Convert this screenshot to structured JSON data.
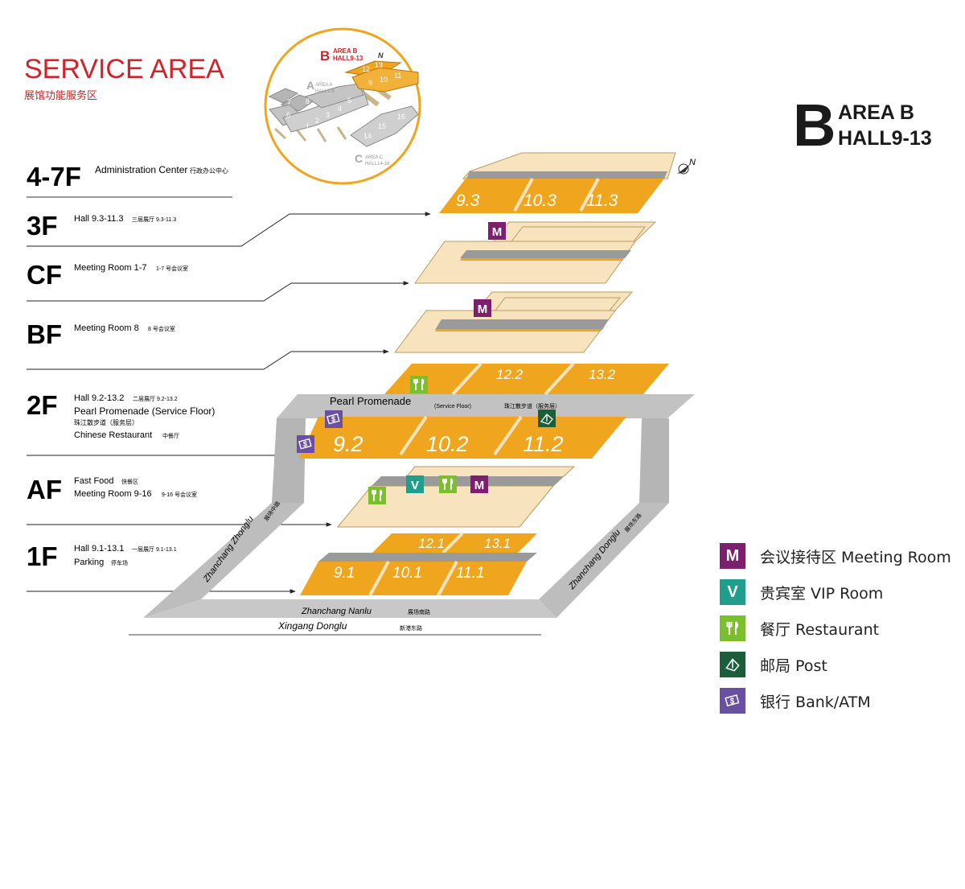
{
  "header": {
    "title": "SERVICE AREA",
    "subtitle": "展馆功能服务区",
    "area_letter": "B",
    "area_name": "AREA B",
    "area_halls": "HALL9-13"
  },
  "minimap": {
    "area_b_letter": "B",
    "area_b_line1": "AREA B",
    "area_b_line2": "HALL9-13",
    "area_a_letter": "A",
    "area_a_line1": "AREA A",
    "area_a_line2": "HALL1-8",
    "area_c_letter": "C",
    "area_c_line1": "AREA C",
    "area_c_line2": "HALL14-16",
    "north": "N",
    "a_halls": [
      "1",
      "2",
      "3",
      "4",
      "5",
      "6",
      "7",
      "8"
    ],
    "b_halls": [
      "9",
      "10",
      "11",
      "12",
      "13"
    ],
    "c_halls": [
      "14",
      "15",
      "16"
    ]
  },
  "floors": [
    {
      "label": "4-7F",
      "lines": [
        {
          "en": "Administration Center",
          "cn": "行政办公中心"
        }
      ]
    },
    {
      "label": "3F",
      "lines": [
        {
          "en": "Hall 9.3-11.3",
          "cn": "三层展厅 9.3-11.3"
        }
      ]
    },
    {
      "label": "CF",
      "lines": [
        {
          "en": "Meeting Room 1-7",
          "cn": "1-7 号会议室"
        }
      ]
    },
    {
      "label": "BF",
      "lines": [
        {
          "en": "Meeting Room 8",
          "cn": "8 号会议室"
        }
      ]
    },
    {
      "label": "2F",
      "lines": [
        {
          "en": "Hall 9.2-13.2",
          "cn": "二层展厅 9.2-13.2"
        },
        {
          "en": "Pearl Promenade (Service Floor)",
          "cn": ""
        },
        {
          "en": "珠江散步道（服务层）",
          "cn": ""
        },
        {
          "en": "Chinese Restaurant",
          "cn": "中餐厅"
        }
      ]
    },
    {
      "label": "AF",
      "lines": [
        {
          "en": "Fast Food",
          "cn": "快餐区"
        },
        {
          "en": "Meeting Room 9-16",
          "cn": "9-16 号会议室"
        }
      ]
    },
    {
      "label": "1F",
      "lines": [
        {
          "en": "Hall 9.1-13.1",
          "cn": "一层展厅 9.1-13.1"
        },
        {
          "en": "Parking",
          "cn": "停车场"
        }
      ]
    }
  ],
  "halls": {
    "f3": [
      "9.3",
      "10.3",
      "11.3"
    ],
    "f2_back": [
      "12.2",
      "13.2"
    ],
    "f2_front": [
      "9.2",
      "10.2",
      "11.2"
    ],
    "f1_back": [
      "12.1",
      "13.1"
    ],
    "f1_front": [
      "9.1",
      "10.1",
      "11.1"
    ]
  },
  "promenade": {
    "en": "Pearl Promenade",
    "note": "(Service Floor)",
    "cn": "珠江散步道（服务层）"
  },
  "roads": {
    "zhongl": "Zhanchang Zhonglu",
    "zhongl_cn": "展场中路",
    "dongl": "Zhanchang Donglu",
    "dongl_cn": "展场东路",
    "nanlu": "Zhanchang Nanlu",
    "nanlu_cn": "展场南路",
    "xingang": "Xingang Donglu",
    "xingang_cn": "新港东路"
  },
  "north_label": "N",
  "legend": [
    {
      "icon": "meeting",
      "glyph": "M",
      "label": "会议接待区 Meeting Room",
      "color": "#7b1f6e"
    },
    {
      "icon": "vip",
      "glyph": "V",
      "label": "贵宾室 VIP Room",
      "color": "#1f9e8e"
    },
    {
      "icon": "restaurant",
      "glyph": "",
      "label": "餐厅 Restaurant",
      "color": "#7cbf2e"
    },
    {
      "icon": "post",
      "glyph": "",
      "label": "邮局 Post",
      "color": "#1b5e3a"
    },
    {
      "icon": "bank",
      "glyph": "",
      "label": "银行 Bank/ATM",
      "color": "#6a4fa3"
    }
  ],
  "colors": {
    "title_red": "#d2232a",
    "hall_orange": "#f0a51e",
    "floor_beige": "#f7e3bd",
    "road_grey": "#c8c8c8",
    "strip_grey": "#9a9a9a"
  }
}
